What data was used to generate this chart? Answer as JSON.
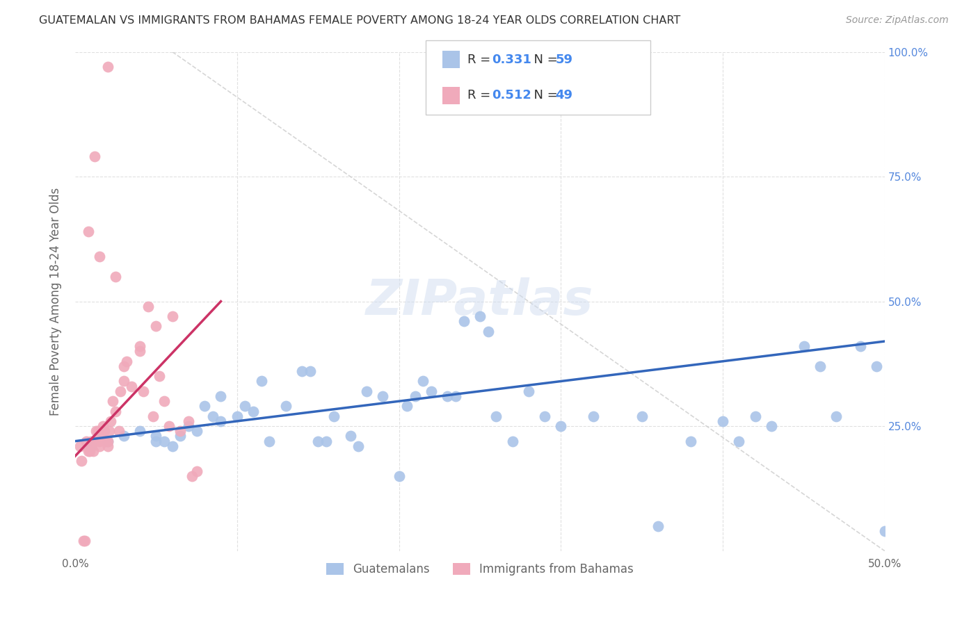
{
  "title": "GUATEMALAN VS IMMIGRANTS FROM BAHAMAS FEMALE POVERTY AMONG 18-24 YEAR OLDS CORRELATION CHART",
  "source": "Source: ZipAtlas.com",
  "ylabel": "Female Poverty Among 18-24 Year Olds",
  "xlim": [
    0.0,
    0.5
  ],
  "ylim": [
    0.0,
    1.0
  ],
  "xticks": [
    0.0,
    0.1,
    0.2,
    0.3,
    0.4,
    0.5
  ],
  "xticklabels": [
    "0.0%",
    "",
    "",
    "",
    "",
    "50.0%"
  ],
  "yticks": [
    0.0,
    0.25,
    0.5,
    0.75,
    1.0
  ],
  "right_yticklabels": [
    "",
    "25.0%",
    "50.0%",
    "75.0%",
    "100.0%"
  ],
  "blue_R": 0.331,
  "blue_N": 59,
  "pink_R": 0.512,
  "pink_N": 49,
  "legend_label_blue": "Guatemalans",
  "legend_label_pink": "Immigrants from Bahamas",
  "blue_color": "#aac4e8",
  "pink_color": "#f0aabb",
  "blue_line_color": "#3366bb",
  "pink_line_color": "#cc3366",
  "ref_line_color": "#cccccc",
  "title_color": "#333333",
  "source_color": "#999999",
  "right_tick_color": "#5588dd",
  "background_color": "#ffffff",
  "blue_trend_x0": 0.0,
  "blue_trend_x1": 0.5,
  "blue_trend_y0": 0.22,
  "blue_trend_y1": 0.42,
  "pink_trend_x0": 0.0,
  "pink_trend_x1": 0.09,
  "pink_trend_y0": 0.19,
  "pink_trend_y1": 0.5,
  "ref_line_x0": 0.06,
  "ref_line_y0": 1.0,
  "ref_line_x1": 0.5,
  "ref_line_y1": 0.0,
  "blue_scatter_x": [
    0.01,
    0.02,
    0.03,
    0.04,
    0.05,
    0.05,
    0.055,
    0.06,
    0.065,
    0.07,
    0.075,
    0.08,
    0.085,
    0.09,
    0.09,
    0.1,
    0.105,
    0.11,
    0.115,
    0.12,
    0.13,
    0.14,
    0.145,
    0.15,
    0.155,
    0.16,
    0.17,
    0.175,
    0.18,
    0.19,
    0.2,
    0.205,
    0.21,
    0.215,
    0.22,
    0.23,
    0.235,
    0.24,
    0.25,
    0.255,
    0.26,
    0.27,
    0.28,
    0.29,
    0.3,
    0.32,
    0.35,
    0.36,
    0.38,
    0.4,
    0.41,
    0.42,
    0.43,
    0.45,
    0.46,
    0.47,
    0.485,
    0.495,
    0.5
  ],
  "blue_scatter_y": [
    0.21,
    0.22,
    0.23,
    0.24,
    0.23,
    0.22,
    0.22,
    0.21,
    0.23,
    0.25,
    0.24,
    0.29,
    0.27,
    0.31,
    0.26,
    0.27,
    0.29,
    0.28,
    0.34,
    0.22,
    0.29,
    0.36,
    0.36,
    0.22,
    0.22,
    0.27,
    0.23,
    0.21,
    0.32,
    0.31,
    0.15,
    0.29,
    0.31,
    0.34,
    0.32,
    0.31,
    0.31,
    0.46,
    0.47,
    0.44,
    0.27,
    0.22,
    0.32,
    0.27,
    0.25,
    0.27,
    0.27,
    0.05,
    0.22,
    0.26,
    0.22,
    0.27,
    0.25,
    0.41,
    0.37,
    0.27,
    0.41,
    0.37,
    0.04
  ],
  "pink_scatter_x": [
    0.003,
    0.004,
    0.005,
    0.006,
    0.007,
    0.008,
    0.009,
    0.01,
    0.011,
    0.012,
    0.013,
    0.014,
    0.015,
    0.015,
    0.016,
    0.017,
    0.018,
    0.019,
    0.02,
    0.02,
    0.021,
    0.022,
    0.023,
    0.025,
    0.027,
    0.028,
    0.03,
    0.03,
    0.032,
    0.035,
    0.04,
    0.04,
    0.042,
    0.045,
    0.048,
    0.05,
    0.052,
    0.055,
    0.058,
    0.06,
    0.065,
    0.07,
    0.072,
    0.075,
    0.008,
    0.012,
    0.015,
    0.02,
    0.025
  ],
  "pink_scatter_y": [
    0.21,
    0.18,
    0.02,
    0.02,
    0.22,
    0.2,
    0.2,
    0.22,
    0.2,
    0.22,
    0.24,
    0.24,
    0.22,
    0.21,
    0.23,
    0.25,
    0.24,
    0.22,
    0.21,
    0.22,
    0.24,
    0.26,
    0.3,
    0.28,
    0.24,
    0.32,
    0.34,
    0.37,
    0.38,
    0.33,
    0.4,
    0.41,
    0.32,
    0.49,
    0.27,
    0.45,
    0.35,
    0.3,
    0.25,
    0.47,
    0.24,
    0.26,
    0.15,
    0.16,
    0.64,
    0.79,
    0.59,
    0.97,
    0.55
  ]
}
